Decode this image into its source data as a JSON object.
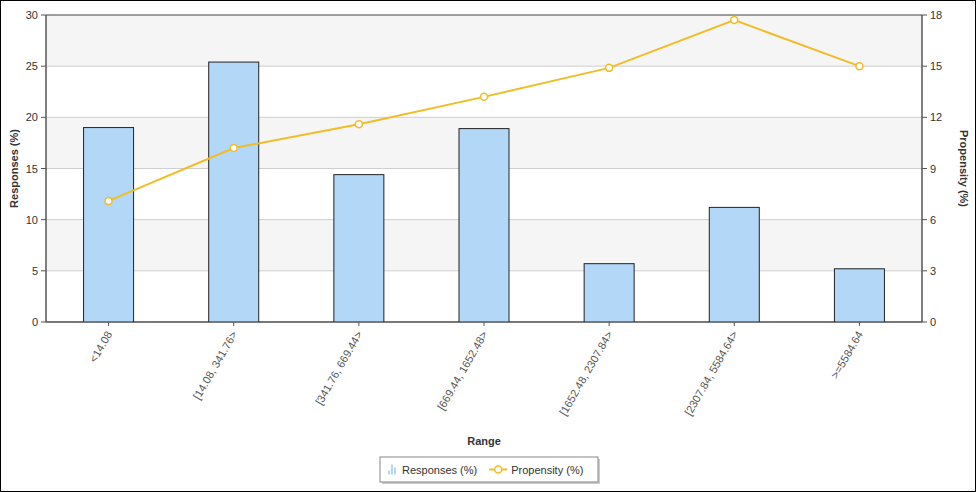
{
  "chart_data": {
    "type": "bar",
    "x_label": "Range",
    "y_label": "Responses (%)",
    "y2_label": "Propensity (%)",
    "categories": [
      "<14.08",
      "[14.08, 341.76>",
      "[341.76, 669.44>",
      "[669.44, 1652.48>",
      "[1652.48, 2307.84>",
      "[2307.84, 5584.64>",
      ">=5584.64"
    ],
    "series": [
      {
        "name": "Responses (%)",
        "type": "bar",
        "color": "#b3d7f7",
        "values": [
          19.0,
          25.4,
          14.4,
          18.9,
          5.7,
          11.2,
          5.2
        ]
      },
      {
        "name": "Propensity (%)",
        "type": "line",
        "axis": "y2",
        "color": "#f0bd27",
        "marker": "circle",
        "values": [
          7.1,
          10.2,
          11.6,
          13.2,
          14.9,
          17.7,
          15.0
        ]
      }
    ],
    "ylim": [
      0,
      30
    ],
    "yticks": [
      0,
      5,
      10,
      15,
      20,
      25,
      30
    ],
    "y2lim": [
      0,
      18
    ],
    "y2ticks": [
      0,
      3,
      6,
      9,
      12,
      15,
      18
    ],
    "grid": true,
    "legend": "bottom"
  }
}
